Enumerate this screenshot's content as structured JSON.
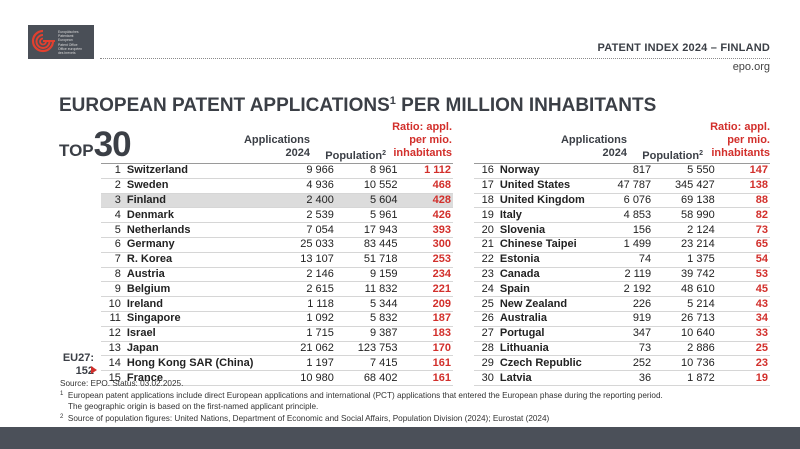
{
  "logo": {
    "lines": [
      "Europäisches",
      "Patentamt",
      "European",
      "Patent Office",
      "Office européen",
      "des brevets"
    ]
  },
  "header": {
    "report_title": "PATENT INDEX 2024 – FINLAND",
    "site": "epo.org"
  },
  "title": {
    "text": "EUROPEAN PATENT APPLICATIONS",
    "sup": "1",
    "rest": " PER MILLION INHABITANTS"
  },
  "top": {
    "prefix": "TOP",
    "number": "30"
  },
  "columns": {
    "applications": [
      "Applications",
      "2024"
    ],
    "population": "Population",
    "population_sup": "2",
    "ratio": [
      "Ratio: appl.",
      "per mio.",
      "inhabitants"
    ]
  },
  "rows_left": [
    {
      "rank": "1",
      "country": "Switzerland",
      "applications": "9 966",
      "population": "8 961",
      "ratio": "1 112"
    },
    {
      "rank": "2",
      "country": "Sweden",
      "applications": "4 936",
      "population": "10 552",
      "ratio": "468"
    },
    {
      "rank": "3",
      "country": "Finland",
      "applications": "2 400",
      "population": "5 604",
      "ratio": "428"
    },
    {
      "rank": "4",
      "country": "Denmark",
      "applications": "2 539",
      "population": "5 961",
      "ratio": "426"
    },
    {
      "rank": "5",
      "country": "Netherlands",
      "applications": "7 054",
      "population": "17 943",
      "ratio": "393"
    },
    {
      "rank": "6",
      "country": "Germany",
      "applications": "25 033",
      "population": "83 445",
      "ratio": "300"
    },
    {
      "rank": "7",
      "country": "R. Korea",
      "applications": "13 107",
      "population": "51 718",
      "ratio": "253"
    },
    {
      "rank": "8",
      "country": "Austria",
      "applications": "2 146",
      "population": "9 159",
      "ratio": "234"
    },
    {
      "rank": "9",
      "country": "Belgium",
      "applications": "2 615",
      "population": "11 832",
      "ratio": "221"
    },
    {
      "rank": "10",
      "country": "Ireland",
      "applications": "1 118",
      "population": "5 344",
      "ratio": "209"
    },
    {
      "rank": "11",
      "country": "Singapore",
      "applications": "1 092",
      "population": "5 832",
      "ratio": "187"
    },
    {
      "rank": "12",
      "country": "Israel",
      "applications": "1 715",
      "population": "9 387",
      "ratio": "183"
    },
    {
      "rank": "13",
      "country": "Japan",
      "applications": "21 062",
      "population": "123 753",
      "ratio": "170"
    },
    {
      "rank": "14",
      "country": "Hong Kong SAR (China)",
      "applications": "1 197",
      "population": "7 415",
      "ratio": "161"
    },
    {
      "rank": "15",
      "country": "France",
      "applications": "10 980",
      "population": "68 402",
      "ratio": "161"
    }
  ],
  "rows_right": [
    {
      "rank": "16",
      "country": "Norway",
      "applications": "817",
      "population": "5 550",
      "ratio": "147"
    },
    {
      "rank": "17",
      "country": "United States",
      "applications": "47 787",
      "population": "345 427",
      "ratio": "138"
    },
    {
      "rank": "18",
      "country": "United Kingdom",
      "applications": "6 076",
      "population": "69 138",
      "ratio": "88"
    },
    {
      "rank": "19",
      "country": "Italy",
      "applications": "4 853",
      "population": "58 990",
      "ratio": "82"
    },
    {
      "rank": "20",
      "country": "Slovenia",
      "applications": "156",
      "population": "2 124",
      "ratio": "73"
    },
    {
      "rank": "21",
      "country": "Chinese Taipei",
      "applications": "1 499",
      "population": "23 214",
      "ratio": "65"
    },
    {
      "rank": "22",
      "country": "Estonia",
      "applications": "74",
      "population": "1 375",
      "ratio": "54"
    },
    {
      "rank": "23",
      "country": "Canada",
      "applications": "2 119",
      "population": "39 742",
      "ratio": "53"
    },
    {
      "rank": "24",
      "country": "Spain",
      "applications": "2 192",
      "population": "48 610",
      "ratio": "45"
    },
    {
      "rank": "25",
      "country": "New Zealand",
      "applications": "226",
      "population": "5 214",
      "ratio": "43"
    },
    {
      "rank": "26",
      "country": "Australia",
      "applications": "919",
      "population": "26 713",
      "ratio": "34"
    },
    {
      "rank": "27",
      "country": "Portugal",
      "applications": "347",
      "population": "10 640",
      "ratio": "33"
    },
    {
      "rank": "28",
      "country": "Lithuania",
      "applications": "73",
      "population": "2 886",
      "ratio": "25"
    },
    {
      "rank": "29",
      "country": "Czech Republic",
      "applications": "252",
      "population": "10 736",
      "ratio": "23"
    },
    {
      "rank": "30",
      "country": "Latvia",
      "applications": "36",
      "population": "1 872",
      "ratio": "19"
    }
  ],
  "highlight_country": "Finland",
  "eu27": {
    "label": "EU27:",
    "value": "152"
  },
  "notes": {
    "source": "Source: EPO. Status: 03.02.2025.",
    "n1_mark": "1",
    "n1_a": "European patent applications include direct European applications and international (PCT) applications that entered the European phase during the reporting period.",
    "n1_b": "The geographic origin is based on the first-named applicant principle.",
    "n2_mark": "2",
    "n2": "Source of population figures: United Nations, Department of Economic and Social Affairs, Population Division (2024); Eurostat (2024)"
  },
  "colors": {
    "accent_red": "#d22f2b",
    "dark": "#3b3f46",
    "highlight_row": "#dcdcdc",
    "footer": "#4b5059"
  }
}
